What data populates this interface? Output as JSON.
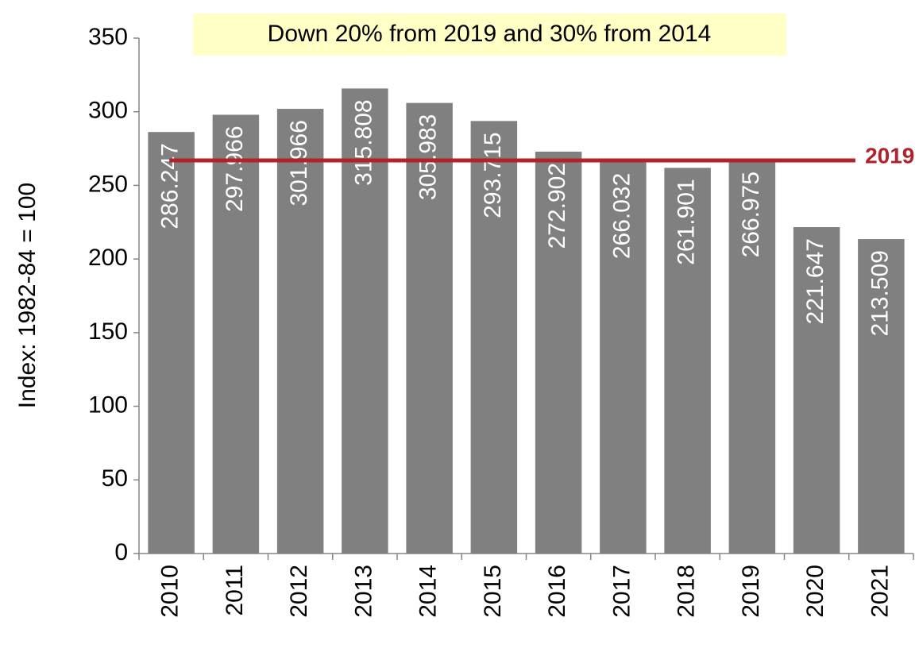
{
  "chart_data": {
    "type": "bar",
    "y_label": "Index: 1982-84 = 100",
    "annotation": "Down 20% from 2019 and 30% from 2014",
    "categories": [
      "2010",
      "2011",
      "2012",
      "2013",
      "2014",
      "2015",
      "2016",
      "2017",
      "2018",
      "2019",
      "2020",
      "2021"
    ],
    "values": [
      286.247,
      297.966,
      301.966,
      315.808,
      305.983,
      293.715,
      272.902,
      266.032,
      261.901,
      266.975,
      221.647,
      213.509
    ],
    "color": "#808080",
    "reference_line": {
      "value": 266.975,
      "label": "2019",
      "color": "#b0232a"
    },
    "ylim": [
      0,
      350
    ],
    "yticks": [
      0,
      50,
      100,
      150,
      200,
      250,
      300,
      350
    ],
    "grid": false
  }
}
